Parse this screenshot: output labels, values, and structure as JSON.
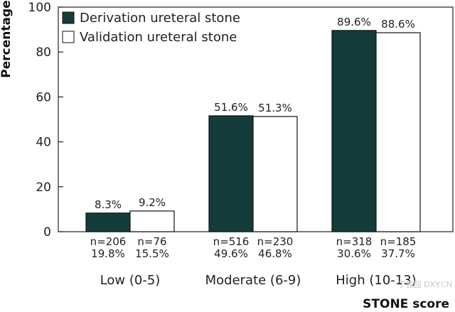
{
  "chart_data": {
    "type": "bar",
    "ylabel": "Percentage",
    "xlabel": "STONE score",
    "ylim": [
      0,
      100
    ],
    "yticks": [
      0,
      20,
      40,
      60,
      80,
      100
    ],
    "grid": false,
    "legend_position": "top-left inside",
    "categories": [
      "Low (0-5)",
      "Moderate (6-9)",
      "High (10-13)"
    ],
    "series": [
      {
        "name": "Derivation ureteral stone",
        "color": "#143c3a",
        "values": [
          8.3,
          51.6,
          89.6
        ],
        "value_labels": [
          "8.3%",
          "51.6%",
          "89.6%"
        ],
        "counts": [
          "n=206",
          "n=516",
          "n=318"
        ],
        "shares": [
          "19.8%",
          "49.6%",
          "30.6%"
        ]
      },
      {
        "name": "Validation ureteral stone",
        "color": "#ffffff",
        "values": [
          9.2,
          51.3,
          88.6
        ],
        "value_labels": [
          "9.2%",
          "51.3%",
          "88.6%"
        ],
        "counts": [
          "n=76",
          "n=230",
          "n=185"
        ],
        "shares": [
          "15.5%",
          "46.8%",
          "37.7%"
        ]
      }
    ]
  },
  "watermark": "丁香园 DXY.CN"
}
